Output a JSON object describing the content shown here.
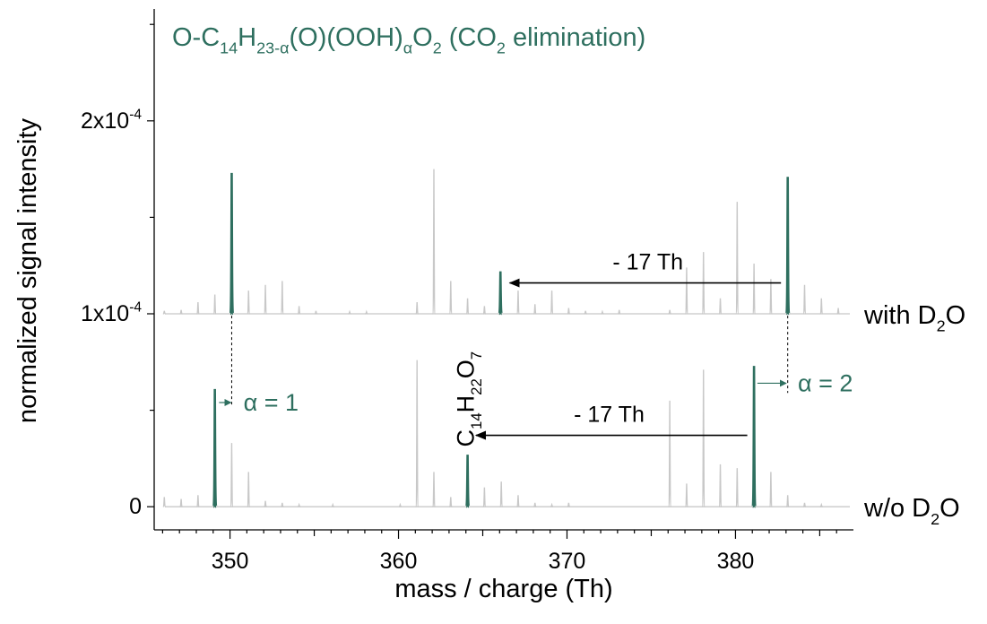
{
  "chart_data": {
    "type": "line",
    "title": {
      "main": "O-C",
      "parts": [
        {
          "t": "O-C"
        },
        {
          "t": "14",
          "s": "sub"
        },
        {
          "t": "H"
        },
        {
          "t": "23-α",
          "s": "sub"
        },
        {
          "t": "(O)(OOH)"
        },
        {
          "t": "α",
          "s": "sub"
        },
        {
          "t": "O"
        },
        {
          "t": "2",
          "s": "sub"
        },
        {
          "t": " (CO"
        },
        {
          "t": "2",
          "s": "sub"
        },
        {
          "t": " elimination)"
        }
      ]
    },
    "xlabel": "mass / charge (Th)",
    "ylabel": "normalized signal intensity",
    "xlim": [
      345.5,
      387
    ],
    "ylim": [
      -1.2e-05,
      0.000258
    ],
    "x_ticks": [
      350,
      360,
      370,
      380
    ],
    "x_tick_labels": [
      "350",
      "360",
      "370",
      "380"
    ],
    "y_ticks": [
      0,
      0.0001,
      0.0002
    ],
    "y_tick_labels": [
      {
        "id": "y0",
        "parts": [
          {
            "t": "0"
          }
        ]
      },
      {
        "id": "y1",
        "parts": [
          {
            "t": "1x10"
          },
          {
            "t": "-4",
            "s": "sup"
          }
        ]
      },
      {
        "id": "y2",
        "parts": [
          {
            "t": "2x10"
          },
          {
            "t": "-4",
            "s": "sup"
          }
        ]
      }
    ],
    "colors": {
      "highlight": "#2e6f5f",
      "background": "#c8c8c8",
      "axis": "#000000",
      "arrow": "#000000"
    },
    "series": [
      {
        "name": "with D2O",
        "baseline": 0.0001,
        "label_parts": [
          {
            "t": "with D"
          },
          {
            "t": "2",
            "s": "sub"
          },
          {
            "t": "O"
          }
        ],
        "background_peaks": [
          [
            346.1,
            1.5e-06
          ],
          [
            347.1,
            2e-06
          ],
          [
            348.1,
            6e-06
          ],
          [
            349.1,
            1e-05
          ],
          [
            351.1,
            1.2e-05
          ],
          [
            352.1,
            1.5e-05
          ],
          [
            353.1,
            1.7e-05
          ],
          [
            354.1,
            4e-06
          ],
          [
            355.1,
            1.5e-06
          ],
          [
            357.1,
            1e-06
          ],
          [
            358.1,
            1e-06
          ],
          [
            361.1,
            6e-06
          ],
          [
            362.1,
            7.5e-05
          ],
          [
            363.1,
            1.7e-05
          ],
          [
            364.1,
            8e-06
          ],
          [
            365.1,
            4e-06
          ],
          [
            367.1,
            1.2e-05
          ],
          [
            368.1,
            5e-06
          ],
          [
            369.1,
            1.2e-05
          ],
          [
            370.1,
            3e-06
          ],
          [
            371.1,
            1.5e-06
          ],
          [
            372.1,
            1e-06
          ],
          [
            373.1,
            2e-06
          ],
          [
            376.1,
            2e-06
          ],
          [
            377.1,
            2.4e-05
          ],
          [
            378.1,
            3.2e-05
          ],
          [
            379.1,
            8e-06
          ],
          [
            380.1,
            5.8e-05
          ],
          [
            381.1,
            2.6e-05
          ],
          [
            382.1,
            1.8e-05
          ],
          [
            384.1,
            1.5e-05
          ],
          [
            385.1,
            8e-06
          ],
          [
            386.1,
            3e-06
          ]
        ],
        "highlight_peaks": [
          [
            350.1,
            7.3e-05
          ],
          [
            366.05,
            2.2e-05
          ],
          [
            383.1,
            7.1e-05
          ]
        ]
      },
      {
        "name": "w/o D2O",
        "baseline": 0,
        "label_parts": [
          {
            "t": "w/o D"
          },
          {
            "t": "2",
            "s": "sub"
          },
          {
            "t": "O"
          }
        ],
        "background_peaks": [
          [
            346.1,
            5e-06
          ],
          [
            347.1,
            4e-06
          ],
          [
            348.1,
            6e-06
          ],
          [
            350.1,
            3.3e-05
          ],
          [
            351.1,
            1.8e-05
          ],
          [
            352.1,
            3e-06
          ],
          [
            353.1,
            2e-06
          ],
          [
            354.1,
            1e-06
          ],
          [
            356.1,
            1e-06
          ],
          [
            360.1,
            1e-06
          ],
          [
            361.1,
            7.6e-05
          ],
          [
            362.1,
            1.8e-05
          ],
          [
            363.1,
            5e-06
          ],
          [
            365.1,
            1e-05
          ],
          [
            366.1,
            1.3e-05
          ],
          [
            367.1,
            6e-06
          ],
          [
            368.1,
            2e-06
          ],
          [
            369.1,
            1e-06
          ],
          [
            370.1,
            2e-06
          ],
          [
            376.1,
            5.5e-05
          ],
          [
            377.1,
            1.2e-05
          ],
          [
            378.1,
            7.1e-05
          ],
          [
            379.1,
            2.2e-05
          ],
          [
            380.1,
            2e-05
          ],
          [
            382.1,
            1.8e-05
          ],
          [
            383.1,
            6e-06
          ],
          [
            384.1,
            2e-06
          ],
          [
            385.1,
            1e-06
          ]
        ],
        "highlight_peaks": [
          [
            349.1,
            6.1e-05
          ],
          [
            364.1,
            2.7e-05
          ],
          [
            381.1,
            7.3e-05
          ]
        ]
      }
    ],
    "annotations": {
      "arrows": [
        {
          "from": [
            382.7,
            0.000116
          ],
          "to": [
            366.6,
            0.000116
          ],
          "label": "- 17 Th",
          "label_x": 374.8,
          "label_y": 0.000123
        },
        {
          "from": [
            380.7,
            3.7e-05
          ],
          "to": [
            364.6,
            3.7e-05
          ],
          "label": "- 17 Th",
          "label_x": 372.5,
          "label_y": 4.4e-05
        }
      ],
      "shift_markers": [
        {
          "dash_x": 350.1,
          "y_top": 9.9e-05,
          "y_bottom": 5.2e-05,
          "arrow_from": 349.35,
          "arrow_to": 350.05,
          "arrow_y": 5.4e-05,
          "label": "α = 1",
          "label_x": 350.8,
          "label_y": 5.4e-05
        },
        {
          "dash_x": 383.1,
          "y_top": 9.9e-05,
          "y_bottom": 5.9e-05,
          "arrow_from": 381.3,
          "arrow_to": 383.0,
          "arrow_y": 6.4e-05,
          "label": "α = 2",
          "label_x": 383.7,
          "label_y": 6.4e-05
        }
      ],
      "formula": {
        "x": 364.0,
        "y": 3.1e-05,
        "parts": [
          {
            "t": "C"
          },
          {
            "t": "14",
            "s": "sub"
          },
          {
            "t": "H"
          },
          {
            "t": "22",
            "s": "sub"
          },
          {
            "t": "O"
          },
          {
            "t": "7",
            "s": "sub"
          }
        ]
      }
    }
  }
}
